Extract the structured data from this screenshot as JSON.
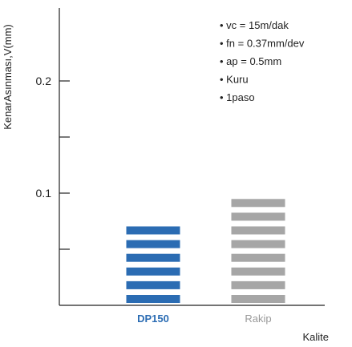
{
  "chart_data": {
    "type": "bar",
    "categories": [
      "DP150",
      "Rakip"
    ],
    "values": [
      0.08,
      0.105
    ],
    "xlabel": "Kalite",
    "ylabel": "KenarAsınması,V(mm)",
    "ylim": [
      0,
      0.26
    ],
    "yticks": [
      0.05,
      0.1,
      0.15,
      0.2
    ],
    "ytick_labels": [
      "",
      "0.1",
      "",
      "0.2"
    ],
    "bar_colors": [
      "#2b6cb3",
      "#a6a6a6"
    ],
    "category_label_colors": [
      "#2b6cb3",
      "#999999"
    ],
    "grid": false,
    "notes": [
      "vc = 15m/dak",
      "fn  = 0.37mm/dev",
      "ap = 0.5mm",
      "Kuru",
      "1paso"
    ]
  }
}
